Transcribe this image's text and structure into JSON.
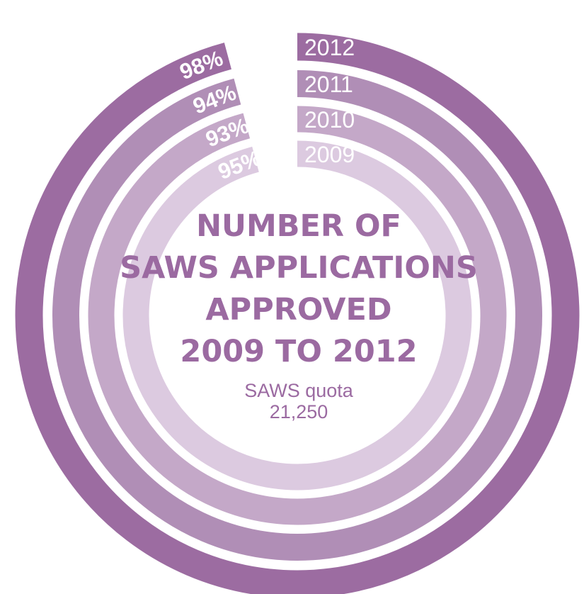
{
  "chart_data": {
    "type": "radial-bar",
    "title": [
      "NUMBER OF",
      "SAWS APPLICATIONS",
      "APPROVED",
      "2009 TO 2012"
    ],
    "subtitle": [
      "SAWS quota",
      "21,250"
    ],
    "quota": 21250,
    "categories": [
      "2012",
      "2011",
      "2010",
      "2009"
    ],
    "values_percent": [
      98,
      94,
      93,
      95
    ],
    "percent_labels": [
      "98%",
      "94%",
      "93%",
      "95%"
    ],
    "value_unit": "percent of quota"
  },
  "colors": {
    "2012": "#9c6ca1",
    "2011": "#b08eb6",
    "2010": "#c4a8c8",
    "2009": "#dccae0",
    "title": "#9b6aa1"
  }
}
